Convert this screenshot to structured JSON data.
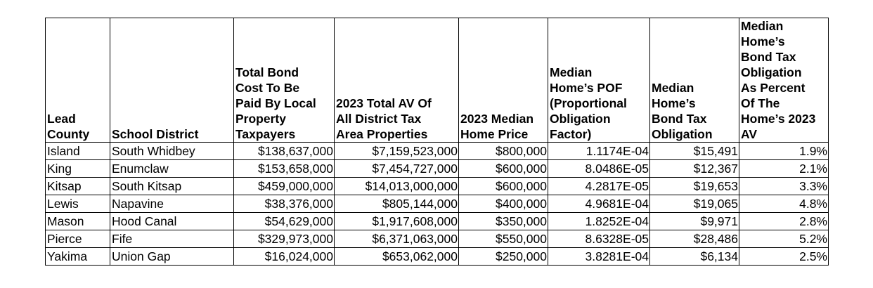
{
  "table": {
    "headers": [
      [
        "Lead",
        "County"
      ],
      [
        "School District"
      ],
      [
        "Total Bond",
        "Cost To Be",
        "Paid By Local",
        "Property",
        "Taxpayers"
      ],
      [
        "2023 Total AV Of",
        "All District Tax",
        "Area Properties"
      ],
      [
        "2023 Median",
        "Home Price"
      ],
      [
        "Median",
        "Home’s POF",
        "(Proportional",
        "Obligation",
        "Factor)"
      ],
      [
        "Median",
        "Home’s",
        "Bond Tax",
        "Obligation"
      ],
      [
        "Median",
        "Home’s",
        "Bond Tax",
        "Obligation",
        "As Percent",
        "Of The",
        "Home’s 2023",
        "AV"
      ]
    ],
    "rows": [
      [
        "Island",
        "South Whidbey",
        "$138,637,000",
        "$7,159,523,000",
        "$800,000",
        "1.1174E-04",
        "$15,491",
        "1.9%"
      ],
      [
        "King",
        "Enumclaw",
        "$153,658,000",
        "$7,454,727,000",
        "$600,000",
        "8.0486E-05",
        "$12,367",
        "2.1%"
      ],
      [
        "Kitsap",
        "South Kitsap",
        "$459,000,000",
        "$14,013,000,000",
        "$600,000",
        "4.2817E-05",
        "$19,653",
        "3.3%"
      ],
      [
        "Lewis",
        "Napavine",
        "$38,376,000",
        "$805,144,000",
        "$400,000",
        "4.9681E-04",
        "$19,065",
        "4.8%"
      ],
      [
        "Mason",
        "Hood Canal",
        "$54,629,000",
        "$1,917,608,000",
        "$350,000",
        "1.8252E-04",
        "$9,971",
        "2.8%"
      ],
      [
        "Pierce",
        "Fife",
        "$329,973,000",
        "$6,371,063,000",
        "$550,000",
        "8.6328E-05",
        "$28,486",
        "5.2%"
      ],
      [
        "Yakima",
        "Union Gap",
        "$16,024,000",
        "$653,062,000",
        "$250,000",
        "3.8281E-04",
        "$6,134",
        "2.5%"
      ]
    ]
  }
}
